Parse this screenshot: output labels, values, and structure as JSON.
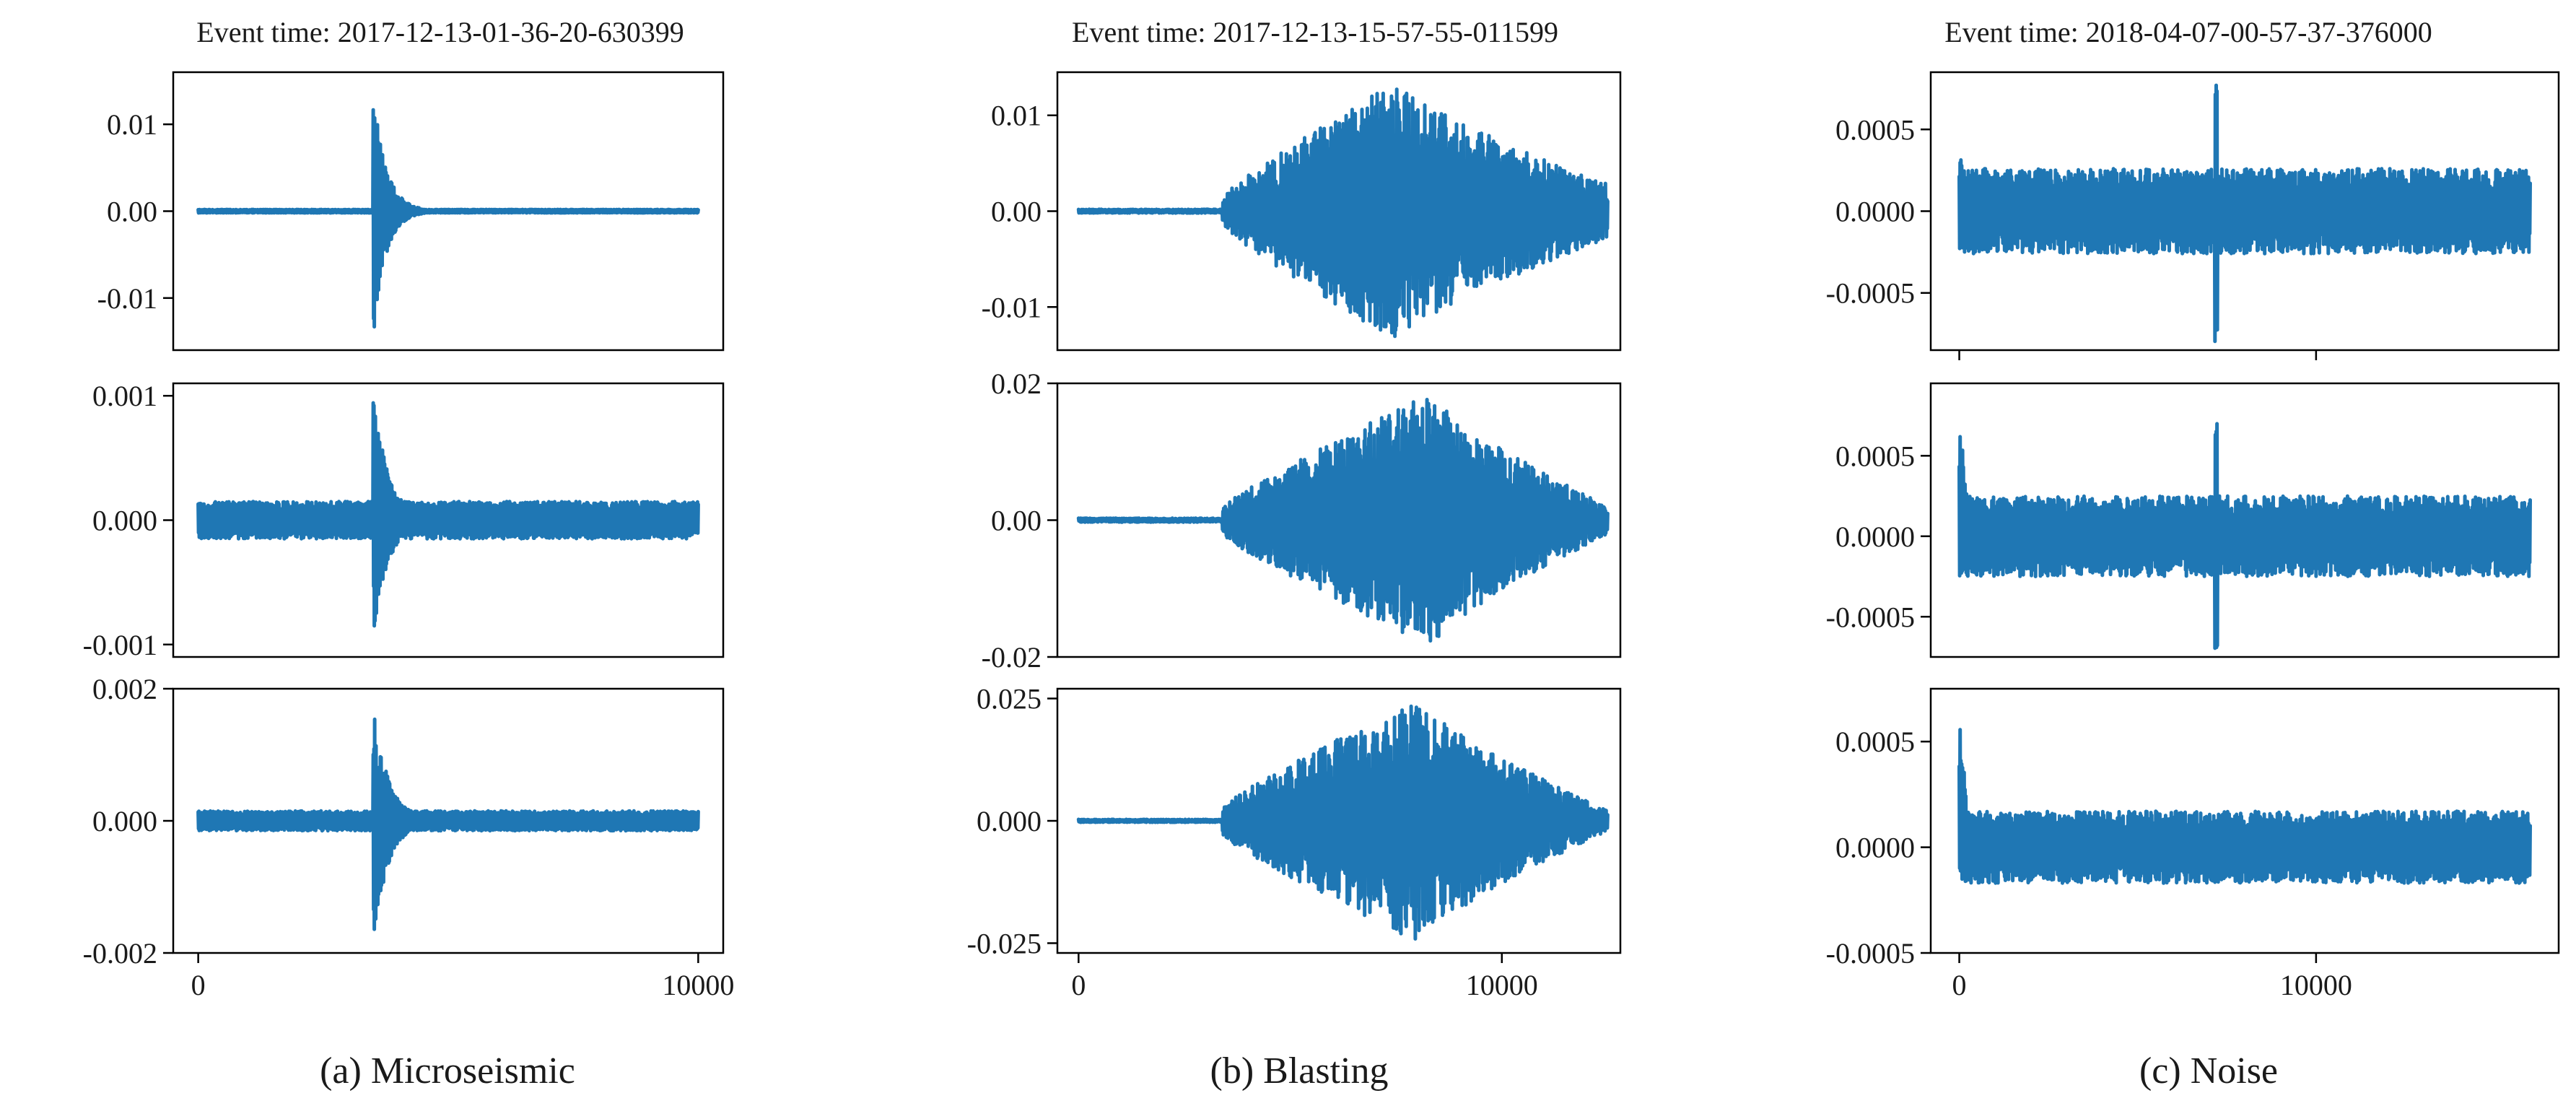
{
  "figure": {
    "columns": [
      {
        "title": "Event time: 2017-12-13-01-36-20-630399",
        "caption": "(a) Microseismic"
      },
      {
        "title": "Event time: 2017-12-13-15-57-55-011599",
        "caption": "(b) Blasting"
      },
      {
        "title": "Event time: 2018-04-07-00-57-37-376000",
        "caption": "(c) Noise"
      }
    ]
  },
  "colors": {
    "signal": "#1f77b4",
    "frame": "#000000",
    "text": "#1a1a1a"
  },
  "chart_data": [
    {
      "type": "line",
      "column": 0,
      "row": 0,
      "xlim": [
        -500,
        10500
      ],
      "ylim": [
        -0.016,
        0.016
      ],
      "yticks": [
        0.01,
        0.0,
        -0.01
      ],
      "ytick_labels": [
        "0.01",
        "0.00",
        "-0.01"
      ],
      "xticks": [],
      "xtick_labels": [],
      "series": [
        {
          "x_range": [
            0,
            10000
          ],
          "pre_event_amplitude": 0.0002,
          "noise_amplitude": 0.0002,
          "onset": 3500,
          "peak_positive": 0.0148,
          "peak_negative": -0.0146,
          "decay": 250
        }
      ]
    },
    {
      "type": "line",
      "column": 0,
      "row": 1,
      "xlim": [
        -500,
        10500
      ],
      "ylim": [
        -0.0011,
        0.0011
      ],
      "yticks": [
        0.001,
        0.0,
        -0.001
      ],
      "ytick_labels": [
        "0.001",
        "0.000",
        "-0.001"
      ],
      "xticks": [],
      "xtick_labels": [],
      "series": [
        {
          "x_range": [
            0,
            10000
          ],
          "pre_event_amplitude": 0.00015,
          "noise_amplitude": 0.00015,
          "onset": 3500,
          "peak_positive": 0.00105,
          "peak_negative": -0.00095,
          "decay": 300
        }
      ]
    },
    {
      "type": "line",
      "column": 0,
      "row": 2,
      "xlim": [
        -500,
        10500
      ],
      "ylim": [
        -0.002,
        0.002
      ],
      "yticks": [
        0.002,
        0.0,
        -0.002
      ],
      "ytick_labels": [
        "0.002",
        "0.000",
        "-0.002"
      ],
      "xticks": [
        0,
        10000
      ],
      "xtick_labels": [
        "0",
        "10000"
      ],
      "series": [
        {
          "x_range": [
            0,
            10000
          ],
          "pre_event_amplitude": 0.00015,
          "noise_amplitude": 0.00015,
          "onset": 3500,
          "peak_positive": 0.0018,
          "peak_negative": -0.0019,
          "decay": 300
        }
      ]
    },
    {
      "type": "line",
      "column": 1,
      "row": 0,
      "xlim": [
        -500,
        12800
      ],
      "ylim": [
        -0.0145,
        0.0145
      ],
      "yticks": [
        0.01,
        0.0,
        -0.01
      ],
      "ytick_labels": [
        "0.01",
        "0.00",
        "-0.01"
      ],
      "xticks": [],
      "xtick_labels": [],
      "series": [
        {
          "x_range": [
            0,
            12500
          ],
          "quiet_until": 3400,
          "pre_event_amplitude": 0.0002,
          "envelope_peak": 7500,
          "peak_amplitude": 0.0135,
          "end_amplitude": 0.0028
        }
      ]
    },
    {
      "type": "line",
      "column": 1,
      "row": 1,
      "xlim": [
        -500,
        12800
      ],
      "ylim": [
        -0.02,
        0.02
      ],
      "yticks": [
        0.02,
        0.0,
        -0.02
      ],
      "ytick_labels": [
        "0.02",
        "0.00",
        "-0.02"
      ],
      "xticks": [],
      "xtick_labels": [],
      "series": [
        {
          "x_range": [
            0,
            12500
          ],
          "quiet_until": 3400,
          "pre_event_amplitude": 0.0003,
          "envelope_peak": 8300,
          "peak_amplitude": 0.0185,
          "end_amplitude": 0.002
        }
      ]
    },
    {
      "type": "line",
      "column": 1,
      "row": 2,
      "xlim": [
        -500,
        12800
      ],
      "ylim": [
        -0.027,
        0.027
      ],
      "yticks": [
        0.025,
        0.0,
        -0.025
      ],
      "ytick_labels": [
        "0.025",
        "0.000",
        "-0.025"
      ],
      "xticks": [
        0,
        10000
      ],
      "xtick_labels": [
        "0",
        "10000"
      ],
      "series": [
        {
          "x_range": [
            0,
            12500
          ],
          "quiet_until": 3400,
          "pre_event_amplitude": 0.0003,
          "envelope_peak": 8000,
          "peak_amplitude": 0.025,
          "end_amplitude": 0.002
        }
      ]
    },
    {
      "type": "line",
      "column": 2,
      "row": 0,
      "xlim": [
        -800,
        16800
      ],
      "ylim": [
        -0.00085,
        0.00085
      ],
      "yticks": [
        0.0005,
        0.0,
        -0.0005
      ],
      "ytick_labels": [
        "0.0005",
        "0.0000",
        "-0.0005"
      ],
      "xticks": [
        0,
        10000
      ],
      "xtick_labels": [
        "0",
        "10000"
      ],
      "xtick_labels_visible": false,
      "series": [
        {
          "x_range": [
            0,
            16000
          ],
          "noise_amplitude": 0.00026,
          "start_peak": 0.00045,
          "spike_at": 7200,
          "spike_positive": 0.0008,
          "spike_negative": -0.0008
        }
      ]
    },
    {
      "type": "line",
      "column": 2,
      "row": 1,
      "xlim": [
        -800,
        16800
      ],
      "ylim": [
        -0.00075,
        0.00095
      ],
      "yticks": [
        0.0005,
        0.0,
        -0.0005
      ],
      "ytick_labels": [
        "0.0005",
        "0.0000",
        "-0.0005"
      ],
      "xticks": [],
      "xtick_labels": [],
      "series": [
        {
          "x_range": [
            0,
            16000
          ],
          "noise_amplitude": 0.00025,
          "start_peak": 0.00085,
          "spike_at": 7200,
          "spike_positive": 0.0007,
          "spike_negative": -0.0007
        }
      ]
    },
    {
      "type": "line",
      "column": 2,
      "row": 2,
      "xlim": [
        -800,
        16800
      ],
      "ylim": [
        -0.0005,
        0.00075
      ],
      "yticks": [
        0.0005,
        0.0,
        -0.0005
      ],
      "ytick_labels": [
        "0.0005",
        "0.0000",
        "-0.0005"
      ],
      "xticks": [
        0,
        10000
      ],
      "xtick_labels": [
        "0",
        "10000"
      ],
      "series": [
        {
          "x_range": [
            0,
            16000
          ],
          "noise_amplitude": 0.00017,
          "start_peak": 0.0007,
          "spike_at": null
        }
      ]
    }
  ]
}
